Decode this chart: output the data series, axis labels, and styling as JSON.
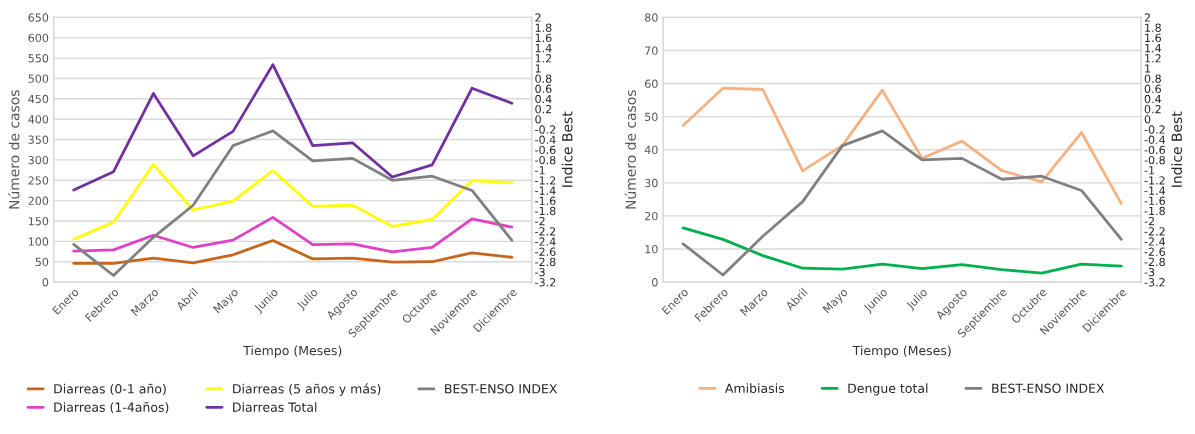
{
  "chart_data": [
    {
      "type": "line",
      "categories": [
        "Enero",
        "Febrero",
        "Marzo",
        "Abril",
        "Mayo",
        "Junio",
        "Julio",
        "Agosto",
        "Septiembre",
        "Octubre",
        "Noviembre",
        "Diciembre"
      ],
      "xlabel": "Tiempo (Meses)",
      "ylabel": "Número de casos",
      "y2label": "Indice Best",
      "ylim": [
        0,
        650
      ],
      "yticks": [
        0,
        50,
        100,
        150,
        200,
        250,
        300,
        350,
        400,
        450,
        500,
        550,
        600,
        650
      ],
      "y2lim": [
        -3.2,
        2
      ],
      "y2ticks": [
        -3.2,
        -3,
        -2.8,
        -2.6,
        -2.4,
        -2.2,
        -2,
        -1.8,
        -1.6,
        -1.4,
        -1.2,
        -1,
        -0.8,
        -0.6,
        -0.4,
        -0.2,
        0,
        0.2,
        0.4,
        0.6,
        0.8,
        1,
        1.2,
        1.4,
        1.6,
        1.8,
        2
      ],
      "grid": "y",
      "legend": "bottom",
      "marker": "none",
      "series": [
        {
          "name": "Diarreas (0-1 año)",
          "color": "#c5661c",
          "values": [
            46,
            46,
            59,
            47,
            67,
            102,
            57,
            59,
            49,
            50,
            72,
            61
          ]
        },
        {
          "name": "Diarreas (1-4años)",
          "color": "#e040c8",
          "values": [
            76,
            79,
            115,
            85,
            103,
            159,
            92,
            94,
            74,
            85,
            155,
            135
          ]
        },
        {
          "name": "Diarreas (5 años y más)",
          "color": "#ffff00",
          "values": [
            105,
            147,
            289,
            177,
            199,
            274,
            186,
            189,
            137,
            154,
            249,
            244
          ]
        },
        {
          "name": "Diarreas Total",
          "color": "#7030a0",
          "values": [
            226,
            271,
            463,
            310,
            370,
            534,
            335,
            342,
            258,
            288,
            476,
            439
          ]
        },
        {
          "name": "BEST-ENSO INDEX",
          "color": "#808080",
          "axis": "y2",
          "values": [
            -2.46,
            -3.07,
            -2.32,
            -1.69,
            -0.52,
            -0.23,
            -0.82,
            -0.77,
            -1.2,
            -1.12,
            -1.4,
            -2.38
          ]
        }
      ]
    },
    {
      "type": "line",
      "categories": [
        "Enero",
        "Febrero",
        "Marzo",
        "Abril",
        "Mayo",
        "Junio",
        "Julio",
        "Agosto",
        "Septiembre",
        "Octubre",
        "Noviembre",
        "Diciembre"
      ],
      "xlabel": "Tiempo (Meses)",
      "ylabel": "Número de casos",
      "y2label": "Indice Best",
      "ylim": [
        0,
        80
      ],
      "yticks": [
        0,
        10,
        20,
        30,
        40,
        50,
        60,
        70,
        80
      ],
      "y2lim": [
        -3.2,
        2
      ],
      "y2ticks": [
        -3.2,
        -3,
        -2.8,
        -2.6,
        -2.4,
        -2.2,
        -2,
        -1.8,
        -1.6,
        -1.4,
        -1.2,
        -1,
        -0.8,
        -0.6,
        -0.4,
        -0.2,
        0,
        0.2,
        0.4,
        0.6,
        0.8,
        1,
        1.2,
        1.4,
        1.6,
        1.8,
        2
      ],
      "grid": "y",
      "legend": "bottom",
      "marker": "none",
      "series": [
        {
          "name": "Amibiasis",
          "color": "#f4b183",
          "values": [
            47.3,
            58.6,
            58.2,
            33.6,
            41.3,
            58,
            37.4,
            42.6,
            33.7,
            30.3,
            45.2,
            23.7
          ]
        },
        {
          "name": "Dengue total",
          "color": "#00b050",
          "values": [
            16.4,
            12.9,
            8,
            4.2,
            3.9,
            5.4,
            4.1,
            5.3,
            3.8,
            2.7,
            5.4,
            4.8
          ]
        },
        {
          "name": "BEST-ENSO INDEX",
          "color": "#808080",
          "axis": "y2",
          "values": [
            -2.45,
            -3.06,
            -2.3,
            -1.62,
            -0.52,
            -0.23,
            -0.8,
            -0.77,
            -1.18,
            -1.12,
            -1.4,
            -2.36
          ]
        }
      ]
    }
  ]
}
